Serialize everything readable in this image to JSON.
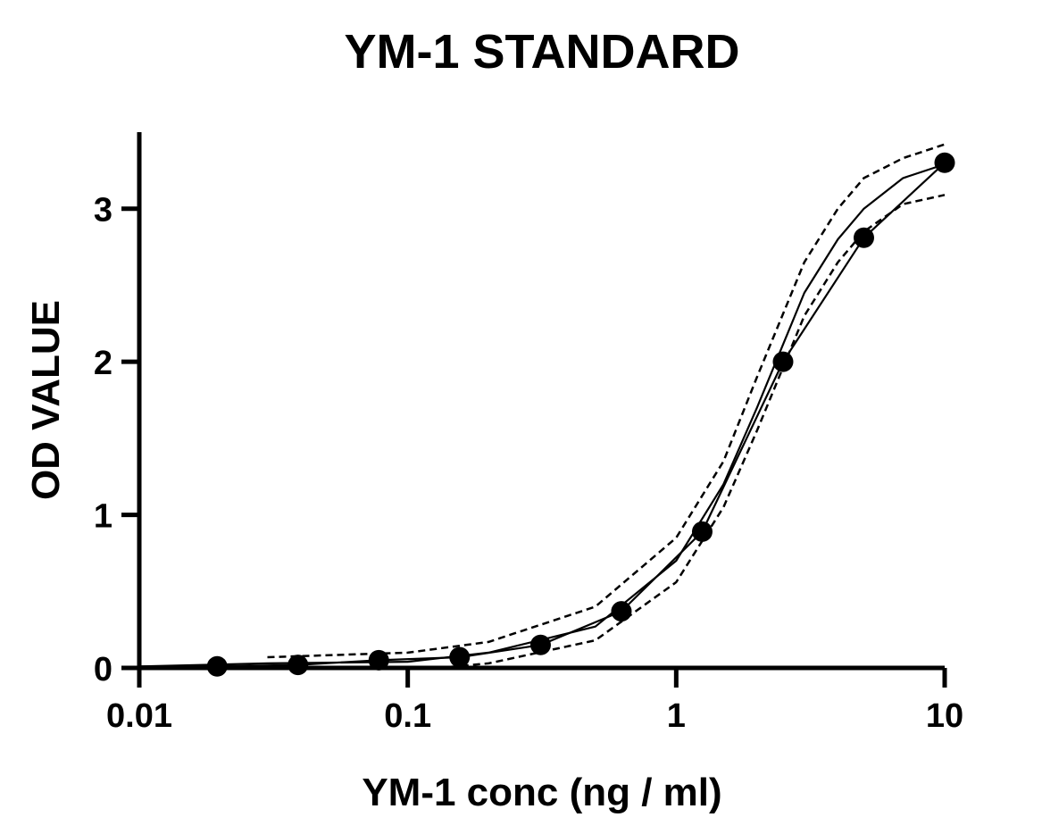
{
  "chart_data": {
    "type": "scatter",
    "title": "YM-1 STANDARD",
    "xlabel": "YM-1 conc (ng / ml)",
    "ylabel": "OD VALUE",
    "xscale": "log",
    "xlim": [
      0.01,
      10
    ],
    "ylim": [
      0,
      3.5
    ],
    "xticks": [
      0.01,
      0.1,
      1,
      10
    ],
    "xtick_labels": [
      "0.01",
      "0.1",
      "1",
      "10"
    ],
    "yticks": [
      0,
      1,
      2,
      3
    ],
    "ytick_labels": [
      "0",
      "1",
      "2",
      "3"
    ],
    "grid": false,
    "legend": "none",
    "series": [
      {
        "kind": "points",
        "marker": "filled-circle",
        "x": [
          0.0195,
          0.039,
          0.078,
          0.156,
          0.3125,
          0.625,
          1.25,
          2.5,
          5,
          10
        ],
        "y": [
          0.01,
          0.02,
          0.05,
          0.07,
          0.15,
          0.37,
          0.89,
          2.0,
          2.81,
          3.3
        ]
      },
      {
        "kind": "connecting-line",
        "x": [
          0.01,
          0.0195,
          0.039,
          0.078,
          0.156,
          0.3125,
          0.625,
          1.25,
          2.5,
          5,
          10
        ],
        "y": [
          0.01,
          0.01,
          0.02,
          0.05,
          0.07,
          0.15,
          0.37,
          0.89,
          2.0,
          2.81,
          3.3
        ]
      },
      {
        "kind": "fit-curve",
        "x": [
          0.01,
          0.03,
          0.1,
          0.2,
          0.5,
          1,
          1.5,
          2,
          3,
          4,
          5,
          7,
          10
        ],
        "y": [
          0.01,
          0.03,
          0.04,
          0.1,
          0.27,
          0.7,
          1.2,
          1.7,
          2.45,
          2.8,
          3.0,
          3.2,
          3.29
        ]
      },
      {
        "kind": "confidence-upper",
        "x": [
          0.03,
          0.1,
          0.2,
          0.5,
          1,
          1.5,
          2,
          3,
          4,
          5,
          7,
          10
        ],
        "y": [
          0.07,
          0.1,
          0.17,
          0.4,
          0.85,
          1.35,
          1.9,
          2.65,
          3.0,
          3.2,
          3.33,
          3.42
        ]
      },
      {
        "kind": "confidence-lower",
        "x": [
          0.13,
          0.2,
          0.5,
          1,
          1.5,
          2,
          3,
          4,
          5,
          7,
          10
        ],
        "y": [
          0.0,
          0.03,
          0.18,
          0.56,
          1.05,
          1.55,
          2.3,
          2.65,
          2.85,
          3.03,
          3.09
        ]
      }
    ]
  }
}
